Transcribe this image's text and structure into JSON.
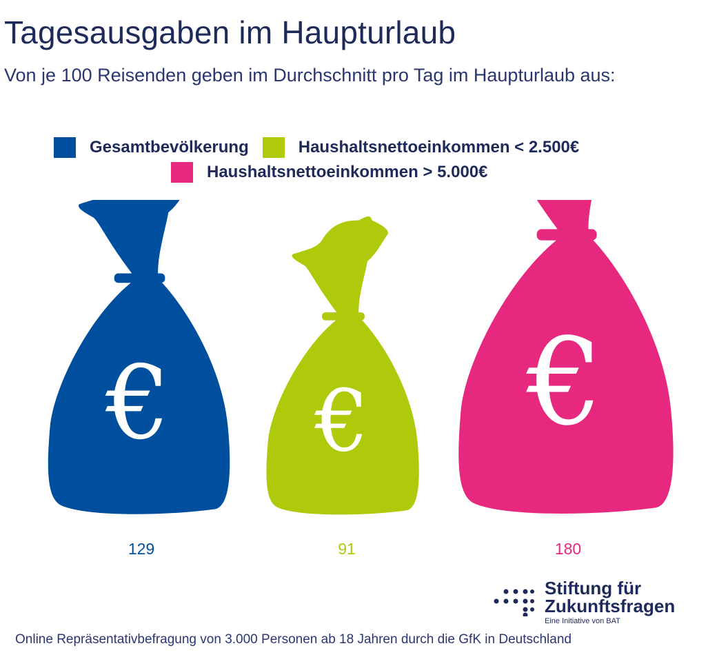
{
  "chart_data": {
    "type": "bar",
    "title": "Tagesausgaben im Haupturlaub",
    "subtitle": "Von je 100 Reisenden geben im Durchschnitt pro Tag im Haupturlaub aus:",
    "categories": [
      "Gesamtbevölkerung",
      "Haushaltsnettoeinkommen < 2.500€",
      "Haushaltsnettoeinkommen > 5.000€"
    ],
    "values": [
      129,
      91,
      180
    ],
    "colors": [
      "#004f9f",
      "#afca0b",
      "#e6287f"
    ],
    "value_labels": [
      "129",
      "91",
      "180"
    ],
    "mark_icon": "money-bag-euro-icon",
    "bag_symbol": "€",
    "legend_placement": "top",
    "grid": false
  },
  "legend": {
    "items": [
      {
        "label": "Gesamtbevölkerung",
        "color": "#004f9f"
      },
      {
        "label": "Haushaltsnettoeinkommen < 2.500€",
        "color": "#afca0b"
      },
      {
        "label": "Haushaltsnettoeinkommen > 5.000€",
        "color": "#e6287f"
      }
    ]
  },
  "logo": {
    "line1": "Stiftung für",
    "line2": "Zukunftsfragen",
    "tagline": "Eine Initiative von BAT",
    "icon": "dot-grid-logo-icon",
    "color": "#1e2a5a"
  },
  "footnote": "Online Repräsentativbefragung von 3.000 Personen ab 18 Jahren durch die GfK in Deutschland"
}
